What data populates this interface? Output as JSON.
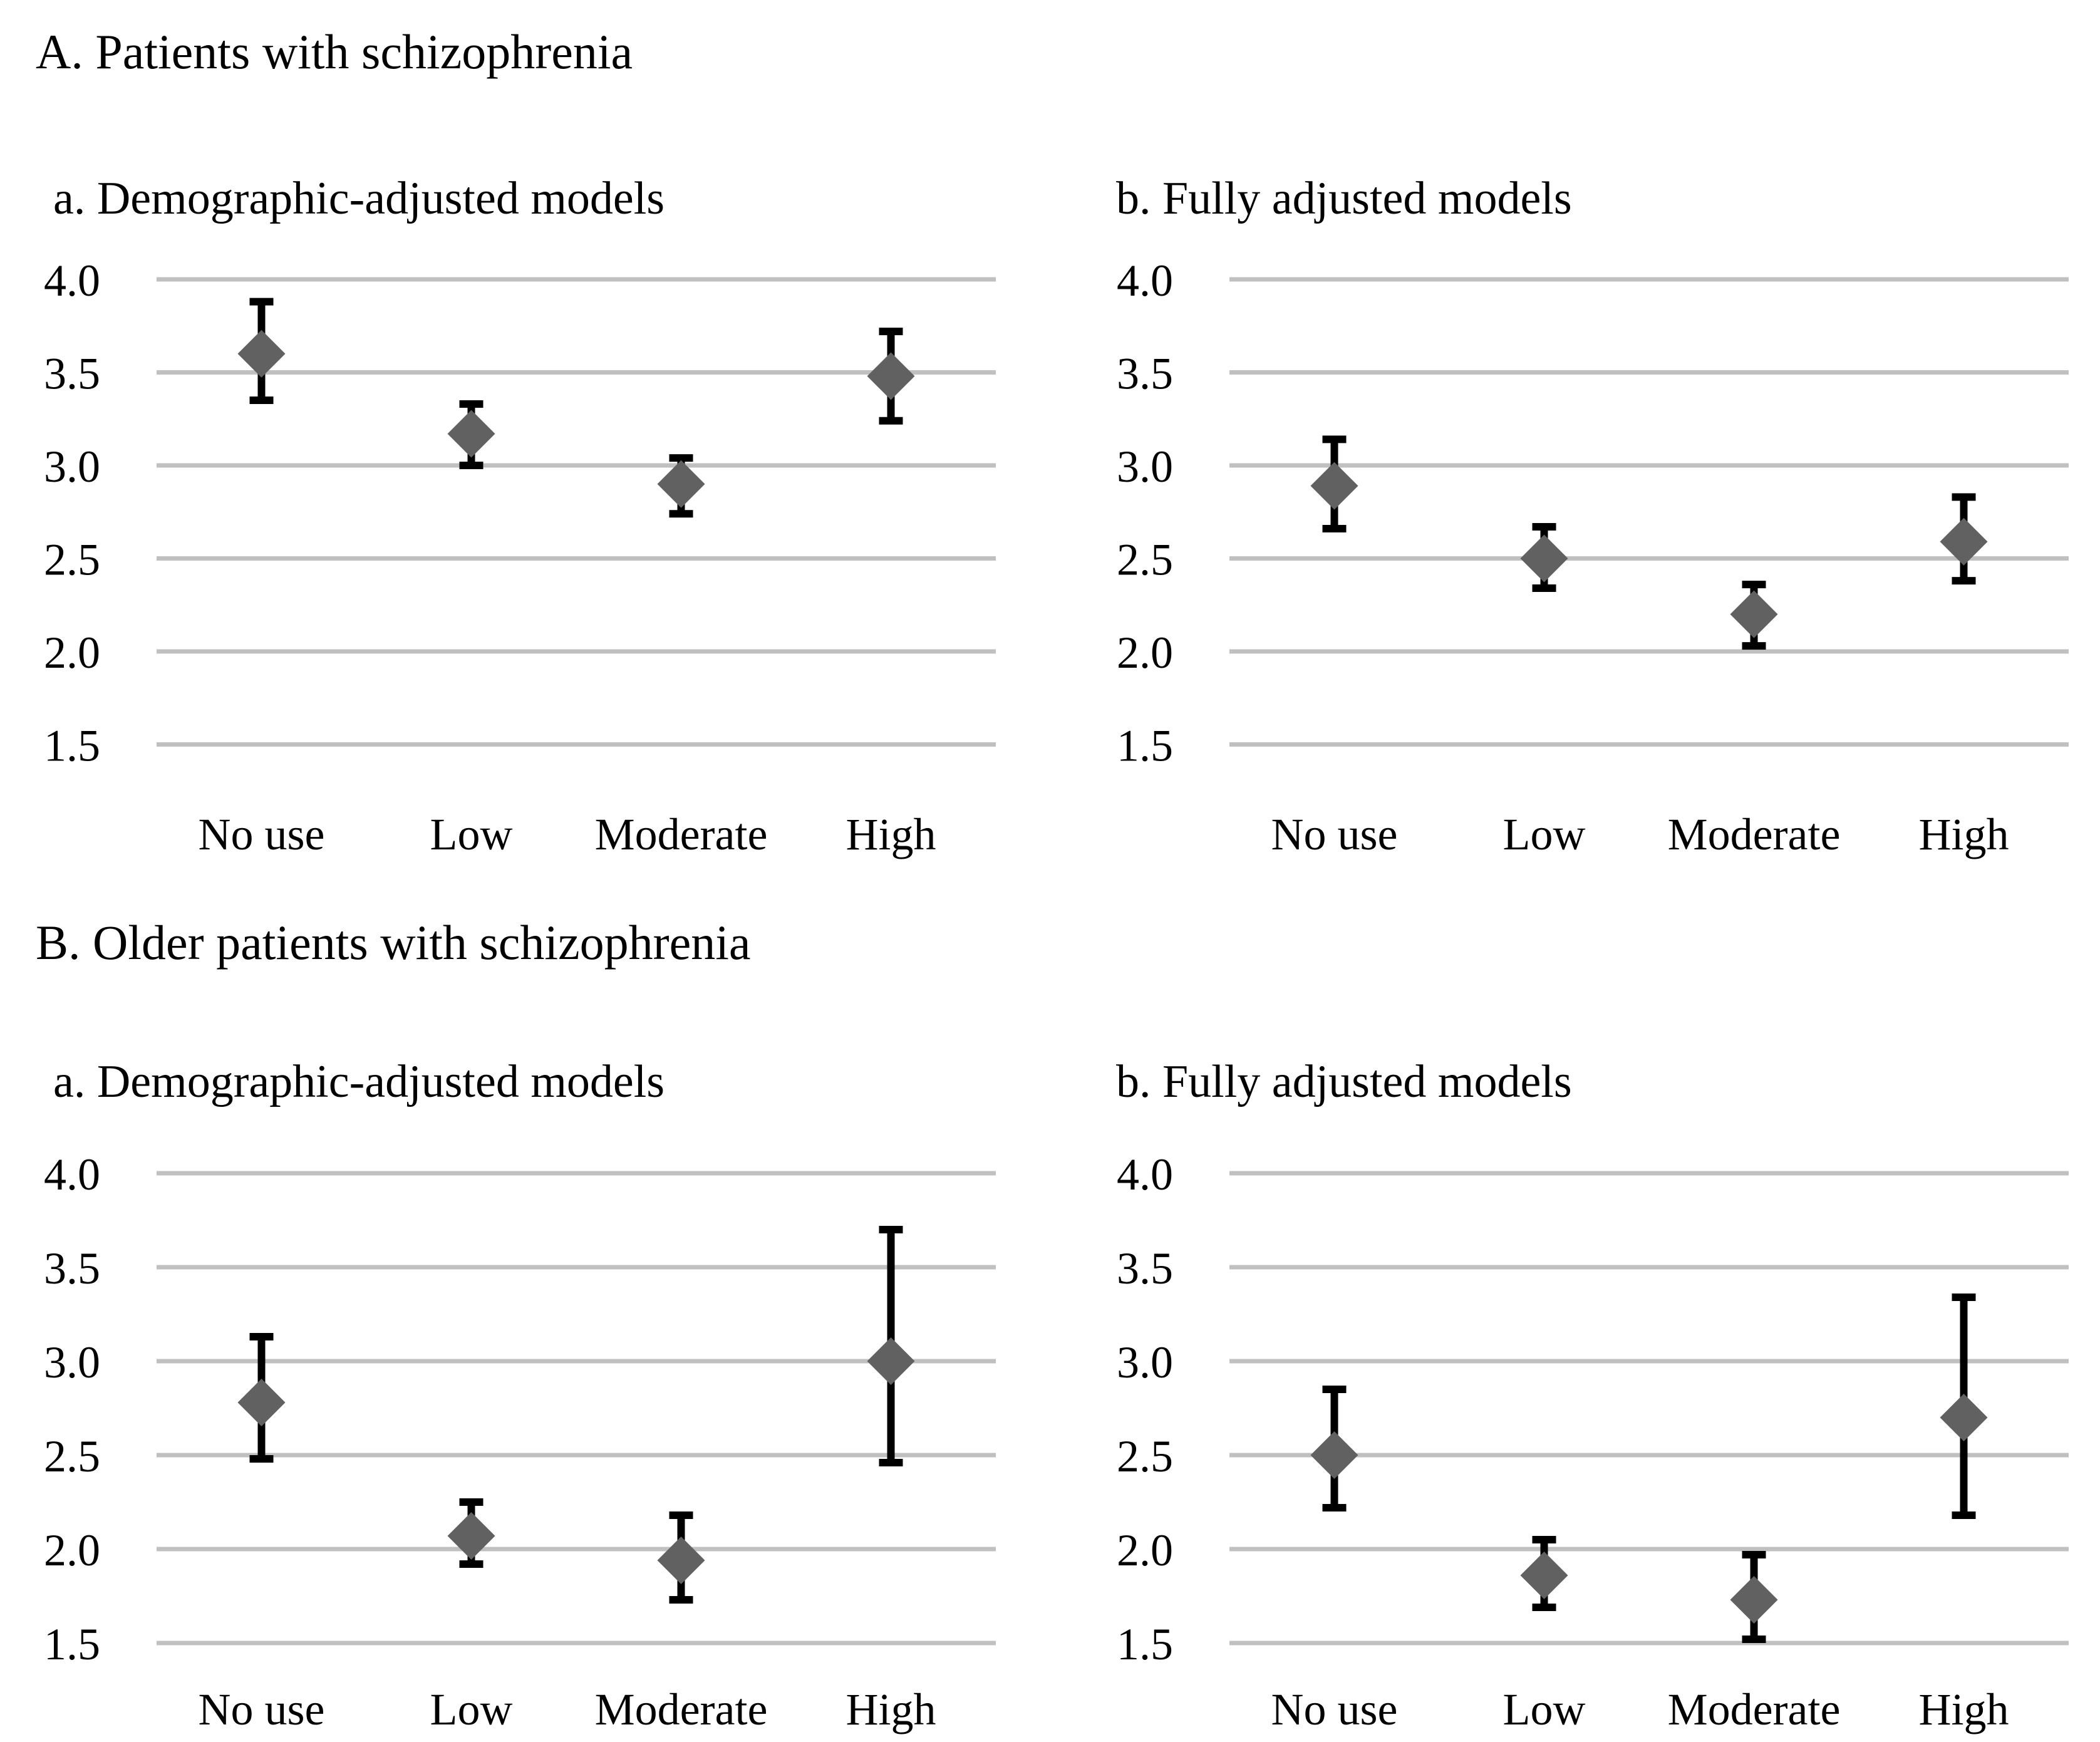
{
  "page": {
    "background": "#ffffff"
  },
  "sections": [
    {
      "label": "A. Patients with schizophrenia"
    },
    {
      "label": "B. Older patients with schizophrenia"
    }
  ],
  "axis": {
    "categories": [
      "No use",
      "Low",
      "Moderate",
      "High"
    ],
    "y_ticks": [
      "4.0",
      "3.5",
      "3.0",
      "2.5",
      "2.0",
      "1.5"
    ],
    "ylim": [
      1.5,
      4.0
    ]
  },
  "style": {
    "marker_color": "#616161",
    "errorbar_color": "#000000",
    "gridline_color": "#c0c0c0",
    "text_color": "#000000"
  },
  "chart_data": [
    {
      "type": "scatter",
      "section": "A. Patients with schizophrenia",
      "title": "a. Demographic-adjusted models",
      "marker": "diamond",
      "error_bars": true,
      "grid": true,
      "legend": "none",
      "categories": [
        "No use",
        "Low",
        "Moderate",
        "High"
      ],
      "yticks": [
        "4.0",
        "3.5",
        "3.0",
        "2.5",
        "2.0",
        "1.5"
      ],
      "ylim": [
        1.5,
        4.0
      ],
      "series": [
        {
          "name": "estimate",
          "values": [
            3.6,
            3.17,
            2.9,
            3.48
          ],
          "ci_low": [
            3.35,
            3.0,
            2.74,
            3.24
          ],
          "ci_high": [
            3.88,
            3.33,
            3.04,
            3.72
          ]
        }
      ]
    },
    {
      "type": "scatter",
      "section": "A. Patients with schizophrenia",
      "title": "b. Fully adjusted models",
      "marker": "diamond",
      "error_bars": true,
      "grid": true,
      "legend": "none",
      "categories": [
        "No use",
        "Low",
        "Moderate",
        "High"
      ],
      "yticks": [
        "4.0",
        "3.5",
        "3.0",
        "2.5",
        "2.0",
        "1.5"
      ],
      "ylim": [
        1.5,
        4.0
      ],
      "series": [
        {
          "name": "estimate",
          "values": [
            2.89,
            2.5,
            2.2,
            2.59
          ],
          "ci_low": [
            2.66,
            2.34,
            2.03,
            2.38
          ],
          "ci_high": [
            3.14,
            2.67,
            2.36,
            2.83
          ]
        }
      ]
    },
    {
      "type": "scatter",
      "section": "B. Older patients with schizophrenia",
      "title": "a. Demographic-adjusted models",
      "marker": "diamond",
      "error_bars": true,
      "grid": true,
      "legend": "none",
      "categories": [
        "No use",
        "Low",
        "Moderate",
        "High"
      ],
      "yticks": [
        "4.0",
        "3.5",
        "3.0",
        "2.5",
        "2.0",
        "1.5"
      ],
      "ylim": [
        1.5,
        4.0
      ],
      "series": [
        {
          "name": "estimate",
          "values": [
            2.78,
            2.07,
            1.94,
            3.0
          ],
          "ci_low": [
            2.48,
            1.92,
            1.73,
            2.46
          ],
          "ci_high": [
            3.13,
            2.25,
            2.18,
            3.7
          ]
        }
      ]
    },
    {
      "type": "scatter",
      "section": "B. Older patients with schizophrenia",
      "title": "b. Fully adjusted models",
      "marker": "diamond",
      "error_bars": true,
      "grid": true,
      "legend": "none",
      "categories": [
        "No use",
        "Low",
        "Moderate",
        "High"
      ],
      "yticks": [
        "4.0",
        "3.5",
        "3.0",
        "2.5",
        "2.0",
        "1.5"
      ],
      "ylim": [
        1.5,
        4.0
      ],
      "series": [
        {
          "name": "estimate",
          "values": [
            2.5,
            1.86,
            1.73,
            2.7
          ],
          "ci_low": [
            2.22,
            1.69,
            1.52,
            2.18
          ],
          "ci_high": [
            2.85,
            2.05,
            1.97,
            3.34
          ]
        }
      ]
    }
  ]
}
